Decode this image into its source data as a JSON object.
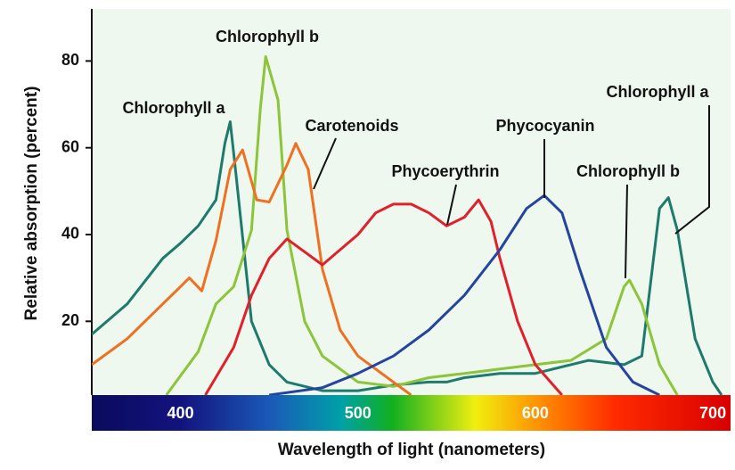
{
  "chart_data": {
    "type": "line",
    "xlabel": "Wavelength of light (nanometers)",
    "ylabel": "Relative absorption (percent)",
    "xlim": [
      350,
      710
    ],
    "ylim": [
      3,
      92
    ],
    "xticks": [
      400,
      500,
      600,
      700
    ],
    "yticks": [
      20,
      40,
      60,
      80
    ],
    "series": [
      {
        "name": "Chlorophyll a",
        "color": "#1f7a6e",
        "x": [
          350,
          370,
          390,
          400,
          410,
          420,
          425,
          428,
          431,
          440,
          450,
          460,
          480,
          500,
          520,
          540,
          550,
          560,
          580,
          600,
          620,
          630,
          650,
          660,
          670,
          675,
          680,
          690,
          700,
          705
        ],
        "values": [
          17,
          24,
          34.5,
          38,
          42,
          48,
          61,
          66,
          55,
          20,
          10,
          6,
          4,
          4,
          5.3,
          6,
          6,
          7,
          8,
          8,
          10,
          11,
          10,
          12,
          46,
          48.5,
          41,
          16,
          6,
          3
        ]
      },
      {
        "name": "Chlorophyll b",
        "color": "#8cc43a",
        "x": [
          392,
          410,
          420,
          430,
          440,
          445,
          448,
          455,
          460,
          470,
          480,
          500,
          520,
          540,
          560,
          580,
          600,
          620,
          640,
          650,
          653,
          660,
          670,
          680
        ],
        "values": [
          3,
          13,
          24,
          28,
          41,
          69,
          81,
          71,
          41,
          20,
          12,
          6,
          5,
          7,
          8,
          9,
          10,
          11,
          16,
          28,
          29.5,
          24,
          10,
          3
        ]
      },
      {
        "name": "Carotenoids",
        "color": "#f07022",
        "x": [
          350,
          370,
          390,
          400,
          405,
          412,
          420,
          428,
          435,
          443,
          450,
          460,
          465,
          472,
          480,
          490,
          500,
          520,
          530
        ],
        "values": [
          10,
          16,
          24,
          28,
          30,
          27,
          38.6,
          55,
          59.5,
          48,
          47.5,
          56,
          61,
          55,
          32,
          18,
          12,
          6,
          3
        ]
      },
      {
        "name": "Phycoerythrin",
        "color": "#e0202a",
        "x": [
          414,
          430,
          440,
          450,
          460,
          470,
          480,
          490,
          500,
          510,
          520,
          530,
          540,
          550,
          560,
          568,
          575,
          580,
          590,
          600,
          615
        ],
        "values": [
          3,
          14,
          26,
          34.5,
          39,
          36,
          33,
          36.5,
          40,
          45,
          47,
          47,
          45,
          42,
          44,
          48,
          43,
          34.5,
          20,
          10,
          3
        ]
      },
      {
        "name": "Phycocyanin",
        "color": "#2444a0",
        "x": [
          450,
          480,
          500,
          520,
          540,
          560,
          580,
          595,
          605,
          615,
          625,
          640,
          655,
          670
        ],
        "values": [
          3,
          4.7,
          8,
          12,
          18,
          26,
          36.5,
          46,
          49,
          45,
          32,
          14,
          6,
          3
        ]
      }
    ]
  }
}
